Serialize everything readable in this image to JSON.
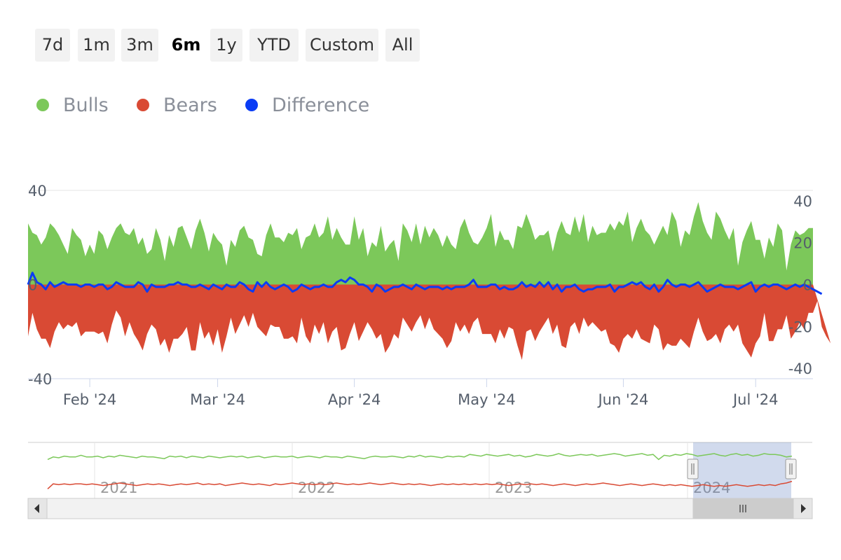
{
  "range_selector": {
    "buttons": [
      "7d",
      "1m",
      "3m",
      "6m",
      "1y",
      "YTD",
      "Custom",
      "All"
    ],
    "selected": "6m"
  },
  "legend": {
    "items": [
      {
        "label": "Bulls",
        "color": "#7cc85a"
      },
      {
        "label": "Bears",
        "color": "#d94a34"
      },
      {
        "label": "Difference",
        "color": "#0a3cf5"
      }
    ]
  },
  "chart_data": {
    "type": "area",
    "title": "",
    "x_range": [
      "Jan 18 '24",
      "Jul 14 '24"
    ],
    "x_tick_labels": [
      "Feb '24",
      "Mar '24",
      "Apr '24",
      "May '24",
      "Jun '24",
      "Jul '24"
    ],
    "left_axis": {
      "ticks": [
        "40",
        "0",
        "-40"
      ],
      "range": [
        -40,
        40
      ]
    },
    "right_axis": {
      "ticks": [
        "40",
        "20",
        "0",
        "-20",
        "-40"
      ],
      "range": [
        -45,
        45
      ]
    },
    "series": [
      {
        "name": "Bulls",
        "type": "area",
        "values": [
          26,
          22,
          21,
          17,
          20,
          26,
          24,
          21,
          17,
          13,
          24,
          21,
          19,
          12,
          17,
          13,
          23,
          21,
          15,
          20,
          24,
          26,
          22,
          21,
          24,
          17,
          20,
          13,
          15,
          24,
          19,
          10,
          21,
          16,
          24,
          25,
          20,
          15,
          23,
          28,
          22,
          14,
          22,
          19,
          17,
          8,
          19,
          16,
          23,
          25,
          20,
          19,
          13,
          12,
          21,
          26,
          20,
          20,
          18,
          22,
          21,
          24,
          15,
          20,
          21,
          26,
          20,
          22,
          29,
          19,
          24,
          20,
          17,
          17,
          29,
          19,
          24,
          12,
          18,
          16,
          25,
          14,
          17,
          19,
          10,
          26,
          23,
          18,
          26,
          17,
          25,
          20,
          24,
          21,
          16,
          21,
          17,
          15,
          24,
          28,
          22,
          18,
          17,
          20,
          24,
          30,
          16,
          23,
          19,
          19,
          15,
          25,
          24,
          30,
          25,
          19,
          21,
          21,
          23,
          14,
          22,
          27,
          22,
          21,
          29,
          22,
          30,
          18,
          25,
          21,
          22,
          22,
          26,
          23,
          27,
          25,
          31,
          18,
          24,
          28,
          23,
          21,
          17,
          21,
          25,
          21,
          31,
          27,
          16,
          23,
          21,
          29,
          35,
          27,
          22,
          19,
          31,
          28,
          23,
          19,
          24,
          8,
          18,
          23,
          27,
          19,
          19,
          11,
          20,
          16,
          26,
          23,
          6,
          17,
          23,
          21,
          22,
          24,
          24
        ]
      },
      {
        "name": "Bears",
        "type": "area",
        "values": [
          -22,
          -12,
          -19,
          -23,
          -23,
          -27,
          -20,
          -16,
          -19,
          -17,
          -18,
          -16,
          -22,
          -20,
          -20,
          -20,
          -21,
          -20,
          -25,
          -17,
          -11,
          -14,
          -22,
          -16,
          -21,
          -24,
          -28,
          -21,
          -17,
          -19,
          -26,
          -23,
          -29,
          -23,
          -23,
          -21,
          -18,
          -28,
          -28,
          -16,
          -23,
          -20,
          -26,
          -19,
          -29,
          -22,
          -14,
          -21,
          -17,
          -13,
          -18,
          -12,
          -18,
          -20,
          -22,
          -17,
          -18,
          -18,
          -23,
          -23,
          -22,
          -25,
          -14,
          -22,
          -25,
          -17,
          -21,
          -16,
          -25,
          -20,
          -18,
          -28,
          -27,
          -21,
          -16,
          -24,
          -20,
          -16,
          -19,
          -23,
          -21,
          -29,
          -26,
          -21,
          -23,
          -14,
          -17,
          -20,
          -16,
          -13,
          -19,
          -14,
          -19,
          -21,
          -23,
          -27,
          -24,
          -16,
          -20,
          -17,
          -21,
          -16,
          -14,
          -21,
          -21,
          -21,
          -25,
          -19,
          -23,
          -18,
          -19,
          -26,
          -32,
          -20,
          -19,
          -24,
          -20,
          -17,
          -14,
          -21,
          -17,
          -26,
          -27,
          -18,
          -16,
          -21,
          -14,
          -18,
          -16,
          -18,
          -20,
          -19,
          -25,
          -26,
          -29,
          -23,
          -21,
          -23,
          -19,
          -23,
          -24,
          -25,
          -17,
          -19,
          -28,
          -25,
          -26,
          -26,
          -23,
          -25,
          -27,
          -20,
          -14,
          -20,
          -24,
          -23,
          -21,
          -25,
          -19,
          -17,
          -20,
          -17,
          -25,
          -28,
          -31,
          -25,
          -22,
          -12,
          -24,
          -24,
          -19,
          -19,
          -13,
          -23,
          -20,
          -16,
          -19,
          -12,
          -12,
          -7,
          -18,
          -22,
          -25
        ]
      },
      {
        "name": "Difference",
        "type": "line",
        "values": [
          0,
          5,
          1,
          0,
          -2,
          1,
          -1,
          0,
          1,
          0,
          0,
          0,
          -1,
          0,
          0,
          -1,
          0,
          0,
          -2,
          -1,
          1,
          0,
          -1,
          -1,
          -1,
          1,
          0,
          -3,
          0,
          -1,
          -1,
          -1,
          0,
          0,
          1,
          0,
          0,
          -1,
          -1,
          0,
          -1,
          -2,
          0,
          -1,
          -2,
          0,
          -1,
          -1,
          1,
          0,
          -2,
          -3,
          1,
          -1,
          1,
          -1,
          -2,
          -1,
          0,
          -1,
          -3,
          -2,
          0,
          -1,
          -2,
          -1,
          -1,
          0,
          -1,
          -1,
          1,
          2,
          1,
          3,
          2,
          0,
          0,
          -1,
          -3,
          0,
          -1,
          -3,
          -2,
          -1,
          -1,
          0,
          -1,
          -2,
          0,
          -1,
          -2,
          -1,
          -1,
          -1,
          -2,
          -1,
          -2,
          -1,
          -1,
          -1,
          0,
          2,
          -1,
          -1,
          -1,
          0,
          0,
          -2,
          -1,
          -2,
          -2,
          -1,
          1,
          -1,
          0,
          -1,
          1,
          -1,
          1,
          -2,
          0,
          -3,
          -1,
          -1,
          0,
          -2,
          -3,
          -2,
          -2,
          -1,
          -1,
          -1,
          0,
          -3,
          -1,
          -1,
          0,
          1,
          0,
          1,
          -1,
          -2,
          0,
          -3,
          -1,
          2,
          0,
          -1,
          0,
          0,
          -1,
          0,
          1,
          -1,
          -3,
          -2,
          -1,
          0,
          -1,
          -1,
          -1,
          -2,
          -1,
          0,
          1,
          -3,
          -1,
          0,
          -1,
          0,
          0,
          -1,
          -2,
          -1,
          0,
          -1,
          0,
          -1,
          -2,
          -3,
          -4
        ]
      }
    ]
  },
  "navigator": {
    "year_labels": [
      "2021",
      "2022",
      "2023",
      "2024"
    ],
    "bulls_values": [
      18,
      21,
      20,
      22,
      21,
      21,
      23,
      21,
      21,
      22,
      20,
      22,
      21,
      23,
      22,
      21,
      20,
      22,
      21,
      21,
      20,
      19,
      22,
      21,
      22,
      20,
      22,
      21,
      20,
      22,
      21,
      20,
      21,
      22,
      21,
      22,
      20,
      21,
      22,
      20,
      21,
      22,
      21,
      21,
      22,
      20,
      21,
      22,
      21,
      20,
      22,
      21,
      21,
      20,
      22,
      21,
      20,
      19,
      21,
      22,
      21,
      21,
      22,
      21,
      20,
      22,
      21,
      23,
      21,
      22,
      21,
      20,
      22,
      21,
      22,
      21,
      24,
      23,
      22,
      24,
      23,
      22,
      23,
      24,
      22,
      23,
      21,
      22,
      24,
      23,
      22,
      23,
      25,
      23,
      22,
      23,
      24,
      23,
      24,
      22,
      23,
      24,
      25,
      24,
      22,
      23,
      24,
      25,
      23,
      24,
      18,
      23,
      22,
      24,
      23,
      25,
      24,
      22,
      23,
      24,
      25,
      23,
      22,
      24,
      25,
      23,
      24,
      22,
      23,
      25,
      24,
      24,
      23,
      21,
      22
    ],
    "bears_values": [
      -17,
      -11,
      -12,
      -11,
      -12,
      -11,
      -11,
      -12,
      -11,
      -12,
      -13,
      -12,
      -11,
      -10,
      -11,
      -12,
      -13,
      -12,
      -11,
      -12,
      -11,
      -12,
      -13,
      -12,
      -11,
      -12,
      -11,
      -10,
      -12,
      -11,
      -12,
      -11,
      -13,
      -12,
      -11,
      -10,
      -11,
      -12,
      -11,
      -12,
      -13,
      -11,
      -12,
      -11,
      -10,
      -11,
      -12,
      -11,
      -12,
      -11,
      -12,
      -11,
      -10,
      -11,
      -12,
      -11,
      -12,
      -11,
      -10,
      -11,
      -12,
      -11,
      -10,
      -11,
      -12,
      -11,
      -12,
      -11,
      -12,
      -13,
      -12,
      -11,
      -12,
      -11,
      -12,
      -11,
      -12,
      -11,
      -12,
      -11,
      -12,
      -11,
      -12,
      -13,
      -12,
      -11,
      -12,
      -11,
      -12,
      -11,
      -12,
      -13,
      -12,
      -11,
      -12,
      -13,
      -12,
      -11,
      -12,
      -11,
      -10,
      -11,
      -12,
      -13,
      -12,
      -11,
      -12,
      -13,
      -12,
      -11,
      -12,
      -13,
      -12,
      -13,
      -12,
      -13,
      -14,
      -13,
      -12,
      -13,
      -14,
      -13,
      -14,
      -13,
      -12,
      -13,
      -14,
      -13,
      -12,
      -13,
      -12,
      -13,
      -11,
      -10,
      -8
    ],
    "selected_range": [
      "Jan '24",
      "Jul '24"
    ]
  }
}
